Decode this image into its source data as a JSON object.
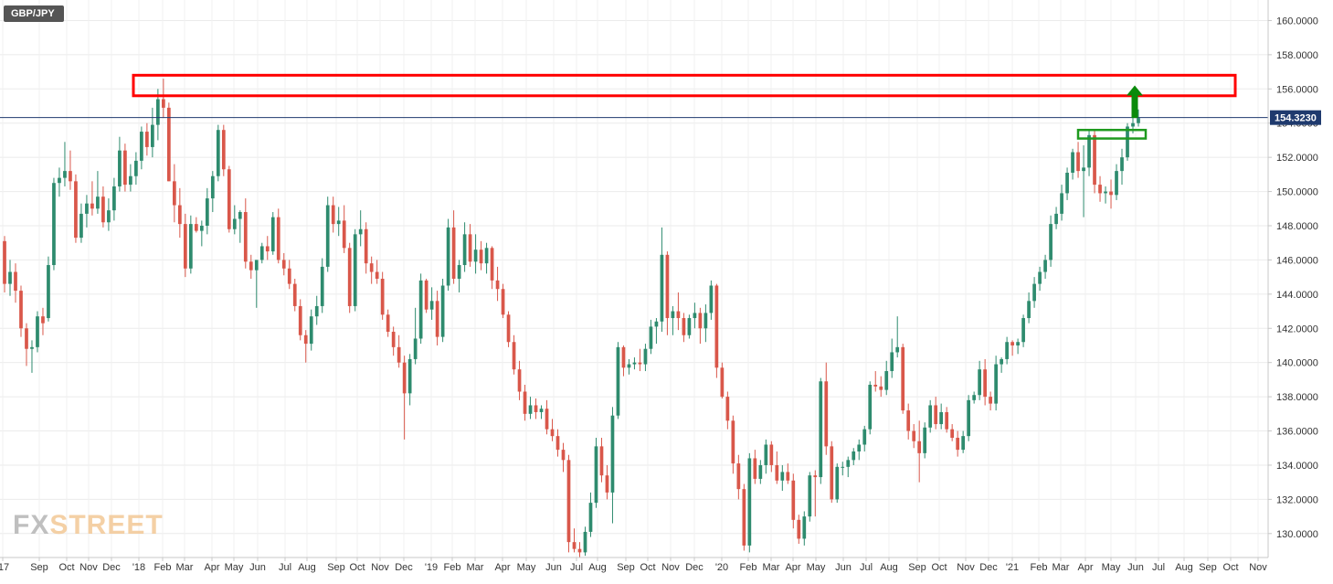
{
  "symbol": "GBP/JPY",
  "watermark": {
    "part1": "FX",
    "part2": "STREET"
  },
  "colors": {
    "up": "#2e8b6e",
    "down": "#d9574a",
    "last_price_line": "#1f3a6e",
    "resistance_box": "#ff0000",
    "breakout_box": "#1e9a1e",
    "arrow": "#0a8a0a"
  },
  "chart_data": {
    "type": "candlestick",
    "timeframe": "weekly",
    "ylim": [
      128.6,
      161.2
    ],
    "y_ticks": [
      "160.0000",
      "158.0000",
      "156.0000",
      "154.0000",
      "152.0000",
      "150.0000",
      "148.0000",
      "146.0000",
      "144.0000",
      "142.0000",
      "140.0000",
      "138.0000",
      "136.0000",
      "134.0000",
      "132.0000",
      "130.0000"
    ],
    "x_tick_labels": [
      "'17",
      "Sep",
      "Oct",
      "Nov",
      "Dec",
      "'18",
      "Feb",
      "Mar",
      "Apr",
      "May",
      "Jun",
      "Jul",
      "Aug",
      "Sep",
      "Oct",
      "Nov",
      "Dec",
      "'19",
      "Feb",
      "Mar",
      "Apr",
      "May",
      "Jun",
      "Jul",
      "Aug",
      "Sep",
      "Oct",
      "Nov",
      "Dec",
      "'20",
      "Feb",
      "Mar",
      "Apr",
      "May",
      "Jun",
      "Jul",
      "Aug",
      "Sep",
      "Oct",
      "Nov",
      "Dec",
      "'21",
      "Feb",
      "Mar",
      "Apr",
      "May",
      "Jun",
      "Jul",
      "Aug",
      "Sep",
      "Oct",
      "Nov"
    ],
    "last_price": 154.323,
    "last_price_label": "154.3230",
    "resistance_zone": {
      "low": 155.6,
      "high": 156.8
    },
    "breakout_zone": {
      "low": 153.1,
      "high": 153.6
    },
    "target_arrow": {
      "from": 154.3,
      "to": 156.2
    },
    "ohlc": [
      [
        147.1,
        147.4,
        144.1,
        144.6
      ],
      [
        144.6,
        146.0,
        143.9,
        145.3
      ],
      [
        145.3,
        145.8,
        143.5,
        144.2
      ],
      [
        144.2,
        144.5,
        141.5,
        142.0
      ],
      [
        142.0,
        142.3,
        139.8,
        140.8
      ],
      [
        140.8,
        141.3,
        139.4,
        140.9
      ],
      [
        140.9,
        143.0,
        140.6,
        142.7
      ],
      [
        142.7,
        143.2,
        141.6,
        142.3
      ],
      [
        142.6,
        146.2,
        142.4,
        145.7
      ],
      [
        145.7,
        150.8,
        145.4,
        150.5
      ],
      [
        150.5,
        151.4,
        149.7,
        150.8
      ],
      [
        150.8,
        152.9,
        150.3,
        151.2
      ],
      [
        151.2,
        152.4,
        150.1,
        150.6
      ],
      [
        150.6,
        151.0,
        147.0,
        147.3
      ],
      [
        147.3,
        149.3,
        147.0,
        148.7
      ],
      [
        148.7,
        149.8,
        147.9,
        149.3
      ],
      [
        149.3,
        150.6,
        148.6,
        149.0
      ],
      [
        149.0,
        151.2,
        148.7,
        149.7
      ],
      [
        149.7,
        150.3,
        147.9,
        148.2
      ],
      [
        148.2,
        149.6,
        147.7,
        148.9
      ],
      [
        148.9,
        150.8,
        148.3,
        150.3
      ],
      [
        150.3,
        153.2,
        150.0,
        152.4
      ],
      [
        152.4,
        152.8,
        150.0,
        150.4
      ],
      [
        150.4,
        151.6,
        150.0,
        150.9
      ],
      [
        150.9,
        152.3,
        150.4,
        151.8
      ],
      [
        151.8,
        153.8,
        151.3,
        153.5
      ],
      [
        153.5,
        154.0,
        152.1,
        152.6
      ],
      [
        152.6,
        154.9,
        152.0,
        153.9
      ],
      [
        153.9,
        156.0,
        153.0,
        155.4
      ],
      [
        155.4,
        156.6,
        154.3,
        154.9
      ],
      [
        154.9,
        155.2,
        150.6,
        150.6
      ],
      [
        150.6,
        151.6,
        148.2,
        149.2
      ],
      [
        149.2,
        150.2,
        147.3,
        148.1
      ],
      [
        148.1,
        148.7,
        145.0,
        145.5
      ],
      [
        145.5,
        148.6,
        145.2,
        148.1
      ],
      [
        148.1,
        148.5,
        147.6,
        147.7
      ],
      [
        147.7,
        148.3,
        146.8,
        148.0
      ],
      [
        148.0,
        150.2,
        147.5,
        149.6
      ],
      [
        149.6,
        151.2,
        148.8,
        150.9
      ],
      [
        150.9,
        153.9,
        150.6,
        153.6
      ],
      [
        153.6,
        153.9,
        150.9,
        151.3
      ],
      [
        151.3,
        151.5,
        147.6,
        147.8
      ],
      [
        147.8,
        149.2,
        147.5,
        148.4
      ],
      [
        148.4,
        148.9,
        147.0,
        148.8
      ],
      [
        148.8,
        149.6,
        145.5,
        145.9
      ],
      [
        145.9,
        146.3,
        144.9,
        145.4
      ],
      [
        145.4,
        146.0,
        143.2,
        146.0
      ],
      [
        146.0,
        147.0,
        145.8,
        146.8
      ],
      [
        146.8,
        147.4,
        146.0,
        146.5
      ],
      [
        146.5,
        148.8,
        146.3,
        148.5
      ],
      [
        148.5,
        149.0,
        145.8,
        146.0
      ],
      [
        146.0,
        146.4,
        145.1,
        145.5
      ],
      [
        145.5,
        146.0,
        144.3,
        144.6
      ],
      [
        144.6,
        144.9,
        143.0,
        143.3
      ],
      [
        143.3,
        143.7,
        141.3,
        141.6
      ],
      [
        141.6,
        141.9,
        140.0,
        141.1
      ],
      [
        141.1,
        143.1,
        140.7,
        142.7
      ],
      [
        142.7,
        143.9,
        142.2,
        143.3
      ],
      [
        143.3,
        146.1,
        142.9,
        145.6
      ],
      [
        145.6,
        149.7,
        145.3,
        149.2
      ],
      [
        149.2,
        149.7,
        147.6,
        148.1
      ],
      [
        148.1,
        149.1,
        147.4,
        148.3
      ],
      [
        148.3,
        149.2,
        146.4,
        146.7
      ],
      [
        146.7,
        147.0,
        142.9,
        143.3
      ],
      [
        143.3,
        147.8,
        143.0,
        147.5
      ],
      [
        147.5,
        148.9,
        146.8,
        147.8
      ],
      [
        147.8,
        148.2,
        145.2,
        145.8
      ],
      [
        145.8,
        146.2,
        144.6,
        145.3
      ],
      [
        145.3,
        146.0,
        144.6,
        144.9
      ],
      [
        144.9,
        145.3,
        142.5,
        142.8
      ],
      [
        142.8,
        143.1,
        141.5,
        141.8
      ],
      [
        141.8,
        142.1,
        140.4,
        140.9
      ],
      [
        140.9,
        141.6,
        139.7,
        140.0
      ],
      [
        140.0,
        140.4,
        135.5,
        138.2
      ],
      [
        138.2,
        140.5,
        137.5,
        140.2
      ],
      [
        140.2,
        143.2,
        139.9,
        141.4
      ],
      [
        141.4,
        145.2,
        141.1,
        144.8
      ],
      [
        144.8,
        144.9,
        142.9,
        143.1
      ],
      [
        143.1,
        144.4,
        142.5,
        143.6
      ],
      [
        143.6,
        144.2,
        141.0,
        141.5
      ],
      [
        141.5,
        144.9,
        141.2,
        144.5
      ],
      [
        144.5,
        148.4,
        144.2,
        147.9
      ],
      [
        147.9,
        148.9,
        144.6,
        144.9
      ],
      [
        144.9,
        146.0,
        144.1,
        145.7
      ],
      [
        145.7,
        148.2,
        145.3,
        147.5
      ],
      [
        147.5,
        148.1,
        145.6,
        145.9
      ],
      [
        145.9,
        147.5,
        145.2,
        146.6
      ],
      [
        146.6,
        147.1,
        145.4,
        145.8
      ],
      [
        145.8,
        147.0,
        145.2,
        146.7
      ],
      [
        146.7,
        146.8,
        144.3,
        144.8
      ],
      [
        144.8,
        145.6,
        143.6,
        144.3
      ],
      [
        144.3,
        144.6,
        142.6,
        142.8
      ],
      [
        142.8,
        143.0,
        140.9,
        141.2
      ],
      [
        141.2,
        141.6,
        139.3,
        139.6
      ],
      [
        139.6,
        140.1,
        137.8,
        138.3
      ],
      [
        138.3,
        138.7,
        136.6,
        137.0
      ],
      [
        137.0,
        138.0,
        136.7,
        137.5
      ],
      [
        137.5,
        137.9,
        136.7,
        137.1
      ],
      [
        137.1,
        137.5,
        136.7,
        137.3
      ],
      [
        137.3,
        137.8,
        135.8,
        136.1
      ],
      [
        136.1,
        136.7,
        135.4,
        135.7
      ],
      [
        135.7,
        136.1,
        134.5,
        134.9
      ],
      [
        134.9,
        135.3,
        133.6,
        134.3
      ],
      [
        134.3,
        134.6,
        128.9,
        129.5
      ],
      [
        129.5,
        130.3,
        128.9,
        129.1
      ],
      [
        129.1,
        129.5,
        128.6,
        128.9
      ],
      [
        128.9,
        130.4,
        128.7,
        130.1
      ],
      [
        130.1,
        132.4,
        129.8,
        131.8
      ],
      [
        131.8,
        135.6,
        131.5,
        135.1
      ],
      [
        135.1,
        135.6,
        133.0,
        133.4
      ],
      [
        133.4,
        134.0,
        132.0,
        132.4
      ],
      [
        132.4,
        137.4,
        130.6,
        136.9
      ],
      [
        136.9,
        141.2,
        136.7,
        140.9
      ],
      [
        140.9,
        141.0,
        139.2,
        139.7
      ],
      [
        139.7,
        140.2,
        139.3,
        139.9
      ],
      [
        139.9,
        140.3,
        139.6,
        140.0
      ],
      [
        140.0,
        140.8,
        139.5,
        139.9
      ],
      [
        139.9,
        141.1,
        139.5,
        140.8
      ],
      [
        140.8,
        142.5,
        140.5,
        142.1
      ],
      [
        142.1,
        142.6,
        141.1,
        142.4
      ],
      [
        142.4,
        147.9,
        141.8,
        146.3
      ],
      [
        146.3,
        146.5,
        141.6,
        142.6
      ],
      [
        142.6,
        143.3,
        141.6,
        143.0
      ],
      [
        143.0,
        144.1,
        141.9,
        142.6
      ],
      [
        142.6,
        142.9,
        141.2,
        141.6
      ],
      [
        141.6,
        142.8,
        141.4,
        142.6
      ],
      [
        142.6,
        143.5,
        142.0,
        142.9
      ],
      [
        142.9,
        143.2,
        141.1,
        142.0
      ],
      [
        142.0,
        143.4,
        141.2,
        142.9
      ],
      [
        142.9,
        144.8,
        142.5,
        144.5
      ],
      [
        144.5,
        144.6,
        139.1,
        139.7
      ],
      [
        139.7,
        140.0,
        137.9,
        138.0
      ],
      [
        138.0,
        138.3,
        136.1,
        136.6
      ],
      [
        136.6,
        136.9,
        133.5,
        134.1
      ],
      [
        134.1,
        134.6,
        132.0,
        132.6
      ],
      [
        132.6,
        132.9,
        129.0,
        129.3
      ],
      [
        129.3,
        134.7,
        128.9,
        134.4
      ],
      [
        134.4,
        134.9,
        132.9,
        133.2
      ],
      [
        133.2,
        134.3,
        132.9,
        134.0
      ],
      [
        134.0,
        135.5,
        133.5,
        135.2
      ],
      [
        135.2,
        135.4,
        133.6,
        134.0
      ],
      [
        134.0,
        134.8,
        132.9,
        133.1
      ],
      [
        133.1,
        134.0,
        132.5,
        133.6
      ],
      [
        133.6,
        134.1,
        132.9,
        133.1
      ],
      [
        133.1,
        133.5,
        130.3,
        130.8
      ],
      [
        130.8,
        131.1,
        129.4,
        129.7
      ],
      [
        129.7,
        131.3,
        129.3,
        131.0
      ],
      [
        131.0,
        133.6,
        130.7,
        133.4
      ],
      [
        133.4,
        133.7,
        131.0,
        133.3
      ],
      [
        133.3,
        139.1,
        132.9,
        138.9
      ],
      [
        138.9,
        140.0,
        134.6,
        135.1
      ],
      [
        135.1,
        135.4,
        131.8,
        132.0
      ],
      [
        132.0,
        134.1,
        131.8,
        133.9
      ],
      [
        133.9,
        134.2,
        133.4,
        133.9
      ],
      [
        133.9,
        134.5,
        133.3,
        134.3
      ],
      [
        134.3,
        135.0,
        134.0,
        134.8
      ],
      [
        134.8,
        135.5,
        134.3,
        135.2
      ],
      [
        135.2,
        136.3,
        134.8,
        136.1
      ],
      [
        136.1,
        138.9,
        135.8,
        138.7
      ],
      [
        138.7,
        139.5,
        138.3,
        138.6
      ],
      [
        138.6,
        139.2,
        138.0,
        138.4
      ],
      [
        138.4,
        140.1,
        138.1,
        139.5
      ],
      [
        139.5,
        141.4,
        139.1,
        140.6
      ],
      [
        140.6,
        142.7,
        140.3,
        140.9
      ],
      [
        140.9,
        141.1,
        137.0,
        137.2
      ],
      [
        137.2,
        137.6,
        135.5,
        136.0
      ],
      [
        136.0,
        136.4,
        135.0,
        135.4
      ],
      [
        135.4,
        136.6,
        133.0,
        134.7
      ],
      [
        134.7,
        136.5,
        134.4,
        136.2
      ],
      [
        136.2,
        137.8,
        135.9,
        137.5
      ],
      [
        137.5,
        138.0,
        136.1,
        136.4
      ],
      [
        136.4,
        137.6,
        136.1,
        137.1
      ],
      [
        137.1,
        137.4,
        135.9,
        136.1
      ],
      [
        136.1,
        136.4,
        135.4,
        135.6
      ],
      [
        135.6,
        136.0,
        134.5,
        134.9
      ],
      [
        134.9,
        136.0,
        134.7,
        135.7
      ],
      [
        135.7,
        138.1,
        135.4,
        137.8
      ],
      [
        137.8,
        138.3,
        137.6,
        138.1
      ],
      [
        138.1,
        140.1,
        137.8,
        139.6
      ],
      [
        139.6,
        140.2,
        137.5,
        138.0
      ],
      [
        138.0,
        138.3,
        137.2,
        137.6
      ],
      [
        137.6,
        140.4,
        137.2,
        139.9
      ],
      [
        139.9,
        140.3,
        139.4,
        140.2
      ],
      [
        140.2,
        141.5,
        139.9,
        141.2
      ],
      [
        141.2,
        141.3,
        140.4,
        141.0
      ],
      [
        141.0,
        141.4,
        140.5,
        141.2
      ],
      [
        141.2,
        142.8,
        140.9,
        142.6
      ],
      [
        142.6,
        144.1,
        142.3,
        143.6
      ],
      [
        143.6,
        145.0,
        143.2,
        144.6
      ],
      [
        144.6,
        145.6,
        144.2,
        145.3
      ],
      [
        145.3,
        146.3,
        144.9,
        146.0
      ],
      [
        146.0,
        148.6,
        145.6,
        148.1
      ],
      [
        148.1,
        149.1,
        147.8,
        148.7
      ],
      [
        148.7,
        150.4,
        148.3,
        149.9
      ],
      [
        149.9,
        151.4,
        149.5,
        151.1
      ],
      [
        151.1,
        152.5,
        150.7,
        152.3
      ],
      [
        152.3,
        152.9,
        150.8,
        151.2
      ],
      [
        151.2,
        152.7,
        148.5,
        151.4
      ],
      [
        151.4,
        153.6,
        150.9,
        153.3
      ],
      [
        153.3,
        153.6,
        149.9,
        150.4
      ],
      [
        150.4,
        150.9,
        149.4,
        149.9
      ],
      [
        149.9,
        150.3,
        149.3,
        150.0
      ],
      [
        150.0,
        150.7,
        149.0,
        149.8
      ],
      [
        149.8,
        151.6,
        149.5,
        151.2
      ],
      [
        151.2,
        152.5,
        150.4,
        152.0
      ],
      [
        152.0,
        154.0,
        151.8,
        153.8
      ],
      [
        153.8,
        154.3,
        153.4,
        154.0
      ],
      [
        154.0,
        154.8,
        153.8,
        154.3
      ]
    ]
  }
}
